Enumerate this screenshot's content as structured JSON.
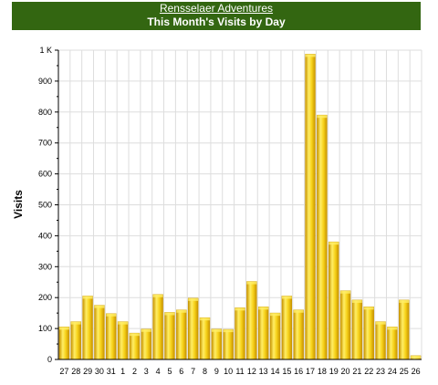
{
  "header": {
    "site_name": "Rensselaer Adventures",
    "chart_title": "This Month's Visits by Day"
  },
  "colors": {
    "header_bg": "#336611",
    "bar_light": "#ffee66",
    "bar_mid": "#f2c900",
    "bar_dark": "#c89400",
    "grid": "#dddddd"
  },
  "chart_data": {
    "type": "bar",
    "title": "This Month's Visits by Day",
    "ylabel": "Visits",
    "xlabel": "",
    "ylim": [
      0,
      1000
    ],
    "y_ticks": [
      {
        "value": 0,
        "label": "0"
      },
      {
        "value": 100,
        "label": "100"
      },
      {
        "value": 200,
        "label": "200"
      },
      {
        "value": 300,
        "label": "300"
      },
      {
        "value": 400,
        "label": "400"
      },
      {
        "value": 500,
        "label": "500"
      },
      {
        "value": 600,
        "label": "600"
      },
      {
        "value": 700,
        "label": "700"
      },
      {
        "value": 800,
        "label": "800"
      },
      {
        "value": 900,
        "label": "900"
      },
      {
        "value": 1000,
        "label": "1 K"
      }
    ],
    "grid": true,
    "categories": [
      "27",
      "28",
      "29",
      "30",
      "31",
      "1",
      "2",
      "3",
      "4",
      "5",
      "6",
      "7",
      "8",
      "9",
      "10",
      "11",
      "12",
      "13",
      "14",
      "15",
      "16",
      "17",
      "18",
      "19",
      "20",
      "21",
      "22",
      "23",
      "24",
      "25",
      "26"
    ],
    "values": [
      105,
      122,
      205,
      175,
      148,
      122,
      85,
      98,
      210,
      152,
      160,
      198,
      135,
      98,
      97,
      167,
      252,
      170,
      150,
      205,
      160,
      987,
      790,
      380,
      222,
      192,
      170,
      122,
      105,
      192,
      12
    ]
  }
}
